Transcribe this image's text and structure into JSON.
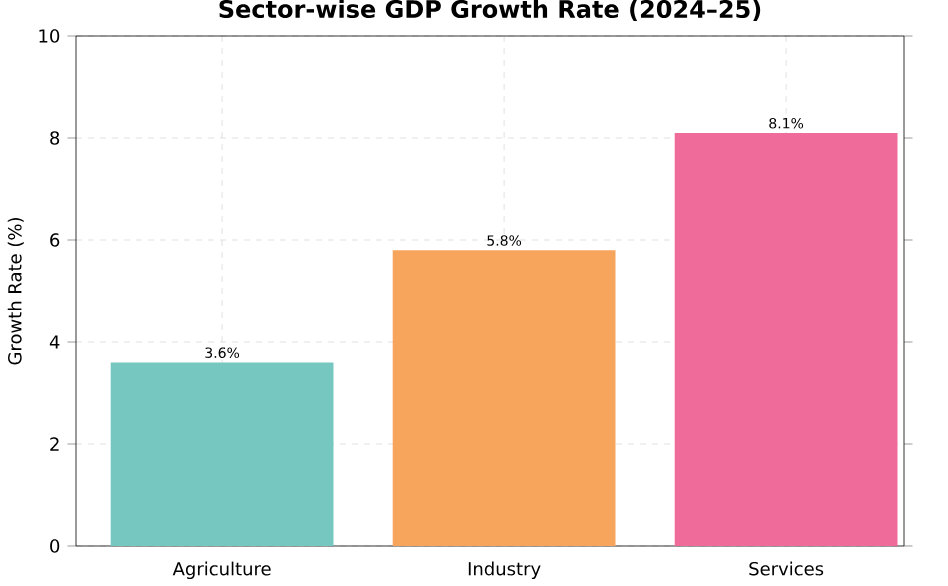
{
  "chart_data": {
    "type": "bar",
    "title": "Sector-wise GDP Growth Rate (2024–25)",
    "ylabel": "Growth Rate (%)",
    "categories": [
      "Agriculture",
      "Industry",
      "Services"
    ],
    "values": [
      3.6,
      5.8,
      8.1
    ],
    "colors": [
      "#76c7bf",
      "#f7a55c",
      "#ef6b9a"
    ],
    "value_labels": [
      "3.6%",
      "5.8%",
      "8.1%"
    ],
    "ylim": [
      0,
      10
    ],
    "yticks": [
      0,
      2,
      4,
      6,
      8,
      10
    ],
    "grid": true
  }
}
